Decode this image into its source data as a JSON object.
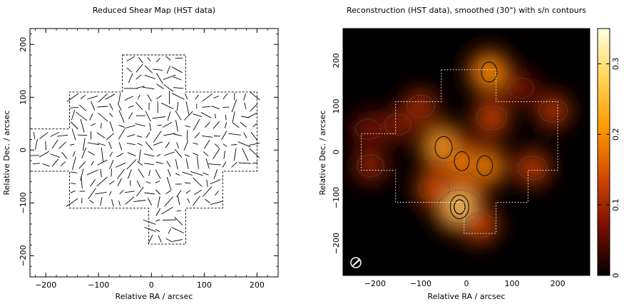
{
  "chart_data": [
    {
      "type": "scatter",
      "title": "Reduced Shear Map (HST data)",
      "xlabel": "Relative RA / arcsec",
      "ylabel": "Relative Dec. / arcsec",
      "xlim": [
        -230,
        240
      ],
      "ylim": [
        -240,
        230
      ],
      "x_ticks": [
        -200,
        -100,
        0,
        100,
        200
      ],
      "y_ticks": [
        -200,
        -100,
        0,
        100,
        200
      ],
      "field_outline": [
        [
          -55,
          180
        ],
        [
          65,
          180
        ],
        [
          65,
          110
        ],
        [
          200,
          110
        ],
        [
          200,
          -40
        ],
        [
          135,
          -40
        ],
        [
          135,
          -110
        ],
        [
          65,
          -110
        ],
        [
          65,
          -178
        ],
        [
          -5,
          -178
        ],
        [
          -5,
          -110
        ],
        [
          -155,
          -110
        ],
        [
          -155,
          -40
        ],
        [
          -230,
          -40
        ],
        [
          -230,
          40
        ],
        [
          -155,
          40
        ],
        [
          -155,
          110
        ],
        [
          -55,
          110
        ]
      ],
      "grid": false
    },
    {
      "type": "heatmap",
      "title": "Reconstruction (HST data), smoothed (30\") with s/n contours",
      "xlabel": "Relative RA / arcsec",
      "ylabel": "Relative Dec. / arcsec",
      "xlim": [
        -270,
        270
      ],
      "ylim": [
        -270,
        270
      ],
      "x_ticks": [
        -200,
        -100,
        0,
        100,
        200
      ],
      "y_ticks": [
        -200,
        -100,
        0,
        100,
        200
      ],
      "colorbar": {
        "min": 0,
        "max": 0.35,
        "ticks": [
          0,
          0.1,
          0.2,
          0.3
        ],
        "colors": [
          "#000000",
          "#7a0f00",
          "#d44a00",
          "#ff9a00",
          "#ffd45a",
          "#ffffe0"
        ]
      },
      "peaks": [
        {
          "x": -50,
          "y": 10,
          "value": 0.26
        },
        {
          "x": 40,
          "y": -30,
          "value": 0.22
        },
        {
          "x": -10,
          "y": -20,
          "value": 0.2
        },
        {
          "x": -15,
          "y": -120,
          "value": 0.3
        },
        {
          "x": 50,
          "y": 175,
          "value": 0.22
        },
        {
          "x": 55,
          "y": 75,
          "value": 0.15
        },
        {
          "x": -100,
          "y": 100,
          "value": 0.12
        },
        {
          "x": -70,
          "y": -80,
          "value": 0.16
        },
        {
          "x": 145,
          "y": -35,
          "value": 0.14
        },
        {
          "x": 190,
          "y": 90,
          "value": 0.13
        },
        {
          "x": -215,
          "y": 50,
          "value": 0.09
        },
        {
          "x": -210,
          "y": -30,
          "value": 0.11
        },
        {
          "x": 30,
          "y": -160,
          "value": 0.15
        },
        {
          "x": -150,
          "y": 60,
          "value": 0.1
        },
        {
          "x": 120,
          "y": 140,
          "value": 0.09
        }
      ],
      "field_outline": [
        [
          -55,
          180
        ],
        [
          65,
          180
        ],
        [
          65,
          110
        ],
        [
          200,
          110
        ],
        [
          200,
          -40
        ],
        [
          135,
          -40
        ],
        [
          135,
          -110
        ],
        [
          65,
          -110
        ],
        [
          65,
          -178
        ],
        [
          -5,
          -178
        ],
        [
          -5,
          -110
        ],
        [
          -155,
          -110
        ],
        [
          -155,
          -40
        ],
        [
          -230,
          -40
        ],
        [
          -230,
          40
        ],
        [
          -155,
          40
        ],
        [
          -155,
          110
        ],
        [
          -55,
          110
        ]
      ]
    }
  ]
}
